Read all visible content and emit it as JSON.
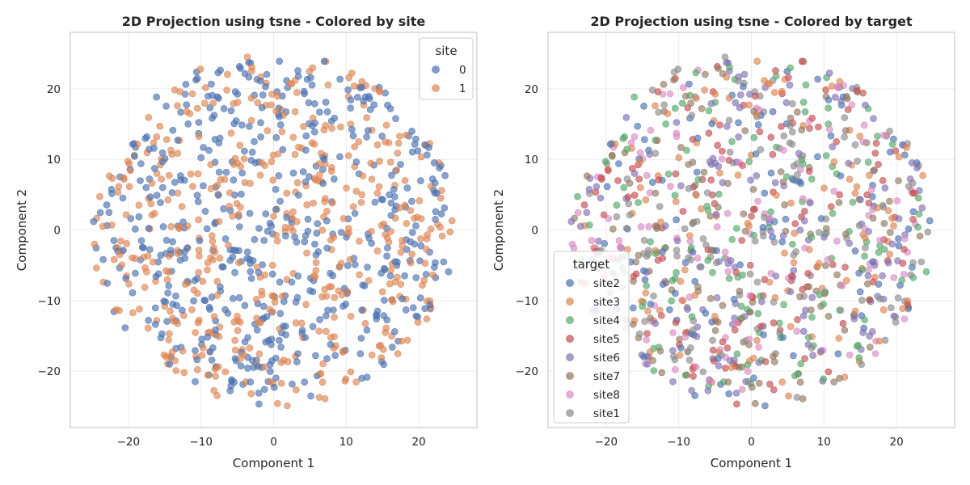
{
  "colors": {
    "site0": "#4c72b0",
    "site1": "#dd8452",
    "site2": "#4c72b0",
    "site3": "#dd8452",
    "site4": "#55a868",
    "site5": "#c44e52",
    "site6": "#8172b3",
    "site7": "#937860",
    "site8": "#da8bc3",
    "siteT1": "#8c8c8c",
    "grid": "#ebebeb",
    "spine": "#cccccc"
  },
  "chart_data": [
    {
      "type": "scatter",
      "title": "2D Projection using tsne - Colored by site",
      "xlabel": "Component 1",
      "ylabel": "Component 2",
      "xlim": [
        -28,
        28
      ],
      "ylim": [
        -28,
        28
      ],
      "xticks": [
        -20,
        -10,
        0,
        10,
        20
      ],
      "yticks": [
        -20,
        -10,
        0,
        10,
        20
      ],
      "xtick_labels": [
        "−20",
        "−10",
        "0",
        "10",
        "20"
      ],
      "ytick_labels": [
        "−20",
        "−10",
        "0",
        "10",
        "20"
      ],
      "grid": true,
      "legend": {
        "title": "site",
        "position": "top-right"
      },
      "point_cloud": {
        "radius": 25,
        "center": [
          0,
          0
        ],
        "n_points": 1000,
        "seed": 7
      },
      "series": [
        {
          "name": "0",
          "color": "#4c72b0",
          "share": 0.5
        },
        {
          "name": "1",
          "color": "#dd8452",
          "share": 0.5
        }
      ]
    },
    {
      "type": "scatter",
      "title": "2D Projection using tsne - Colored by target",
      "xlabel": "Component 1",
      "ylabel": "Component 2",
      "xlim": [
        -28,
        28
      ],
      "ylim": [
        -28,
        28
      ],
      "xticks": [
        -20,
        -10,
        0,
        10,
        20
      ],
      "yticks": [
        -20,
        -10,
        0,
        10,
        20
      ],
      "xtick_labels": [
        "−20",
        "−10",
        "0",
        "10",
        "20"
      ],
      "ytick_labels": [
        "−20",
        "−10",
        "0",
        "10",
        "20"
      ],
      "grid": true,
      "legend": {
        "title": "target",
        "position": "lower-left"
      },
      "point_cloud": {
        "radius": 25,
        "center": [
          0,
          0
        ],
        "n_points": 1000,
        "seed": 7
      },
      "series": [
        {
          "name": "site2",
          "color": "#4c72b0",
          "share": 0.125
        },
        {
          "name": "site3",
          "color": "#dd8452",
          "share": 0.125
        },
        {
          "name": "site4",
          "color": "#55a868",
          "share": 0.125
        },
        {
          "name": "site5",
          "color": "#c44e52",
          "share": 0.125
        },
        {
          "name": "site6",
          "color": "#8172b3",
          "share": 0.125
        },
        {
          "name": "site7",
          "color": "#937860",
          "share": 0.125
        },
        {
          "name": "site8",
          "color": "#da8bc3",
          "share": 0.125
        },
        {
          "name": "site1",
          "color": "#8c8c8c",
          "share": 0.125
        }
      ]
    }
  ]
}
